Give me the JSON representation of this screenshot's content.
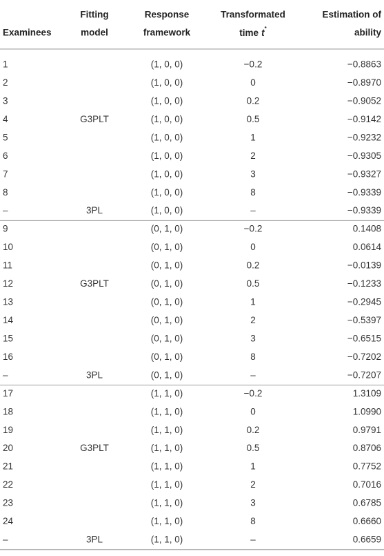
{
  "table": {
    "header": [
      [
        "Examinees"
      ],
      [
        "Fitting",
        "model"
      ],
      [
        "Response",
        "framework"
      ],
      [
        "Transformated",
        {
          "text": "time",
          "var": "t",
          "sup": "*"
        }
      ],
      [
        "Estimation of",
        "ability"
      ]
    ],
    "groups": [
      {
        "rows": [
          [
            "1",
            null,
            "(1, 0, 0)",
            "−0.2",
            "−0.8863"
          ],
          [
            "2",
            null,
            "(1, 0, 0)",
            "0",
            "−0.8970"
          ],
          [
            "3",
            null,
            "(1, 0, 0)",
            "0.2",
            "−0.9052"
          ],
          [
            "4",
            "G3PLT",
            "(1, 0, 0)",
            "0.5",
            "−0.9142"
          ],
          [
            "5",
            null,
            "(1, 0, 0)",
            "1",
            "−0.9232"
          ],
          [
            "6",
            null,
            "(1, 0, 0)",
            "2",
            "−0.9305"
          ],
          [
            "7",
            null,
            "(1, 0, 0)",
            "3",
            "−0.9327"
          ],
          [
            "8",
            null,
            "(1, 0, 0)",
            "8",
            "−0.9339"
          ],
          [
            "–",
            "3PL",
            "(1, 0, 0)",
            "–",
            "−0.9339"
          ]
        ]
      },
      {
        "rows": [
          [
            "9",
            null,
            "(0, 1, 0)",
            "−0.2",
            "0.1408"
          ],
          [
            "10",
            null,
            "(0, 1, 0)",
            "0",
            "0.0614"
          ],
          [
            "11",
            null,
            "(0, 1, 0)",
            "0.2",
            "−0.0139"
          ],
          [
            "12",
            "G3PLT",
            "(0, 1, 0)",
            "0.5",
            "−0.1233"
          ],
          [
            "13",
            null,
            "(0, 1, 0)",
            "1",
            "−0.2945"
          ],
          [
            "14",
            null,
            "(0, 1, 0)",
            "2",
            "−0.5397"
          ],
          [
            "15",
            null,
            "(0, 1, 0)",
            "3",
            "−0.6515"
          ],
          [
            "16",
            null,
            "(0, 1, 0)",
            "8",
            "−0.7202"
          ],
          [
            "–",
            "3PL",
            "(0, 1, 0)",
            "–",
            "−0.7207"
          ]
        ]
      },
      {
        "rows": [
          [
            "17",
            null,
            "(1, 1, 0)",
            "−0.2",
            "1.3109"
          ],
          [
            "18",
            null,
            "(1, 1, 0)",
            "0",
            "1.0990"
          ],
          [
            "19",
            null,
            "(1, 1, 0)",
            "0.2",
            "0.9791"
          ],
          [
            "20",
            "G3PLT",
            "(1, 1, 0)",
            "0.5",
            "0.8706"
          ],
          [
            "21",
            null,
            "(1, 1, 0)",
            "1",
            "0.7752"
          ],
          [
            "22",
            null,
            "(1, 1, 0)",
            "2",
            "0.7016"
          ],
          [
            "23",
            null,
            "(1, 1, 0)",
            "3",
            "0.6785"
          ],
          [
            "24",
            null,
            "(1, 1, 0)",
            "8",
            "0.6660"
          ],
          [
            "–",
            "3PL",
            "(1, 1, 0)",
            "–",
            "0.6659"
          ]
        ]
      }
    ]
  }
}
